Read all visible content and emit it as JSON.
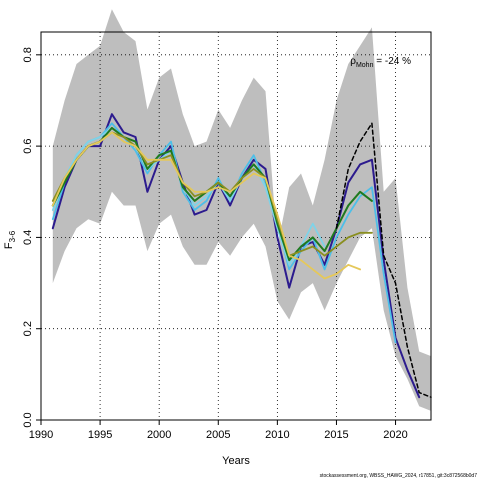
{
  "chart_data": {
    "type": "line",
    "xlabel": "Years",
    "ylabel": "F",
    "ylabel_sub": "3-6",
    "xlim": [
      1990,
      2023
    ],
    "ylim": [
      0,
      0.85
    ],
    "x_ticks": [
      1990,
      1995,
      2000,
      2005,
      2010,
      2015,
      2020
    ],
    "y_ticks": [
      0.0,
      0.2,
      0.4,
      0.6,
      0.8
    ],
    "y_tick_labels": [
      "0.0",
      "0.2",
      "0.4",
      "0.6",
      "0.8"
    ],
    "grid": true,
    "annotation": {
      "rho": "ρ",
      "rho_sub": "Mohn",
      "text": " = -24 %"
    },
    "footer": "stockassessment.org, WBSS_HAWG_2024, r17851, git:3c872568b0d7",
    "band": {
      "color": "#bebebe",
      "x": [
        1991,
        1992,
        1993,
        1994,
        1995,
        1996,
        1997,
        1998,
        1999,
        2000,
        2001,
        2002,
        2003,
        2004,
        2005,
        2006,
        2007,
        2008,
        2009,
        2010,
        2011,
        2012,
        2013,
        2014,
        2015,
        2016,
        2017,
        2018,
        2019,
        2020,
        2021,
        2022,
        2023
      ],
      "upper": [
        0.6,
        0.7,
        0.78,
        0.8,
        0.82,
        0.9,
        0.85,
        0.83,
        0.68,
        0.75,
        0.77,
        0.67,
        0.6,
        0.61,
        0.68,
        0.64,
        0.7,
        0.75,
        0.72,
        0.38,
        0.51,
        0.54,
        0.47,
        0.57,
        0.7,
        0.78,
        0.82,
        0.86,
        0.5,
        0.53,
        0.29,
        0.15,
        0.14
      ],
      "lower": [
        0.3,
        0.37,
        0.42,
        0.44,
        0.43,
        0.5,
        0.47,
        0.47,
        0.37,
        0.43,
        0.45,
        0.38,
        0.34,
        0.34,
        0.39,
        0.36,
        0.4,
        0.43,
        0.38,
        0.26,
        0.22,
        0.28,
        0.3,
        0.24,
        0.3,
        0.35,
        0.4,
        0.42,
        0.24,
        0.14,
        0.09,
        0.03,
        0.02
      ]
    },
    "series": [
      {
        "color": "#2c1b8e",
        "width": 2.0,
        "dash": "",
        "x": [
          1991,
          1992,
          1993,
          1994,
          1995,
          1996,
          1997,
          1998,
          1999,
          2000,
          2001,
          2002,
          2003,
          2004,
          2005,
          2006,
          2007,
          2008,
          2009,
          2010,
          2011,
          2012,
          2013,
          2014,
          2015,
          2016,
          2017,
          2018,
          2019,
          2020,
          2021,
          2022
        ],
        "values": [
          0.42,
          0.51,
          0.57,
          0.6,
          0.6,
          0.67,
          0.63,
          0.62,
          0.5,
          0.57,
          0.6,
          0.52,
          0.45,
          0.46,
          0.52,
          0.47,
          0.53,
          0.57,
          0.55,
          0.4,
          0.29,
          0.38,
          0.39,
          0.34,
          0.42,
          0.52,
          0.56,
          0.57,
          0.35,
          0.18,
          0.11,
          0.05
        ]
      },
      {
        "color": "#4dbfe8",
        "width": 1.8,
        "dash": "",
        "x": [
          1991,
          1992,
          1993,
          1994,
          1995,
          1996,
          1997,
          1998,
          1999,
          2000,
          2001,
          2002,
          2003,
          2004,
          2005,
          2006,
          2007,
          2008,
          2009,
          2010,
          2011,
          2012,
          2013,
          2014,
          2015,
          2016,
          2017,
          2018,
          2019,
          2020
        ],
        "values": [
          0.44,
          0.52,
          0.58,
          0.61,
          0.62,
          0.65,
          0.62,
          0.59,
          0.54,
          0.58,
          0.61,
          0.5,
          0.46,
          0.48,
          0.53,
          0.48,
          0.54,
          0.58,
          0.52,
          0.43,
          0.33,
          0.37,
          0.4,
          0.33,
          0.4,
          0.45,
          0.49,
          0.51,
          0.32,
          0.17
        ]
      },
      {
        "color": "#7fd3e8",
        "width": 1.8,
        "dash": "",
        "x": [
          1991,
          1992,
          1993,
          1994,
          1995,
          1996,
          1997,
          1998,
          1999,
          2000,
          2001,
          2002,
          2003,
          2004,
          2005,
          2006,
          2007,
          2008,
          2009,
          2010,
          2011,
          2012,
          2013,
          2014
        ],
        "values": [
          0.46,
          0.53,
          0.58,
          0.61,
          0.62,
          0.64,
          0.62,
          0.6,
          0.55,
          0.57,
          0.59,
          0.51,
          0.47,
          0.49,
          0.52,
          0.48,
          0.53,
          0.56,
          0.51,
          0.42,
          0.34,
          0.38,
          0.43,
          0.38
        ]
      },
      {
        "color": "#1f7a1f",
        "width": 2.0,
        "dash": "",
        "x": [
          1991,
          1992,
          1993,
          1994,
          1995,
          1996,
          1997,
          1998,
          1999,
          2000,
          2001,
          2002,
          2003,
          2004,
          2005,
          2006,
          2007,
          2008,
          2009,
          2010,
          2011,
          2012,
          2013,
          2014,
          2015,
          2016,
          2017,
          2018
        ],
        "values": [
          0.47,
          0.52,
          0.57,
          0.6,
          0.61,
          0.64,
          0.62,
          0.61,
          0.55,
          0.58,
          0.59,
          0.51,
          0.48,
          0.5,
          0.52,
          0.49,
          0.53,
          0.56,
          0.53,
          0.43,
          0.35,
          0.38,
          0.4,
          0.37,
          0.42,
          0.47,
          0.5,
          0.48
        ]
      },
      {
        "color": "#8a8f20",
        "width": 1.8,
        "dash": "",
        "x": [
          1991,
          1992,
          1993,
          1994,
          1995,
          1996,
          1997,
          1998,
          1999,
          2000,
          2001,
          2002,
          2003,
          2004,
          2005,
          2006,
          2007,
          2008,
          2009,
          2010,
          2011,
          2012,
          2013,
          2014,
          2015,
          2016,
          2017,
          2018
        ],
        "values": [
          0.48,
          0.53,
          0.57,
          0.6,
          0.61,
          0.63,
          0.62,
          0.6,
          0.56,
          0.57,
          0.58,
          0.52,
          0.49,
          0.5,
          0.52,
          0.5,
          0.53,
          0.55,
          0.53,
          0.44,
          0.36,
          0.37,
          0.38,
          0.36,
          0.38,
          0.4,
          0.41,
          0.41
        ]
      },
      {
        "color": "#e5c85a",
        "width": 1.8,
        "dash": "",
        "x": [
          1991,
          1992,
          1993,
          1994,
          1995,
          1996,
          1997,
          1998,
          1999,
          2000,
          2001,
          2002,
          2003,
          2004,
          2005,
          2006,
          2007,
          2008,
          2009,
          2010,
          2011,
          2012,
          2013,
          2014,
          2015,
          2016,
          2017
        ],
        "values": [
          0.47,
          0.53,
          0.57,
          0.6,
          0.61,
          0.63,
          0.61,
          0.6,
          0.57,
          0.57,
          0.57,
          0.52,
          0.5,
          0.5,
          0.51,
          0.5,
          0.52,
          0.54,
          0.53,
          0.45,
          0.36,
          0.35,
          0.33,
          0.31,
          0.32,
          0.34,
          0.33
        ]
      },
      {
        "color": "#000000",
        "width": 1.5,
        "dash": "4,3",
        "x": [
          2015,
          2016,
          2017,
          2018,
          2019,
          2020,
          2021,
          2022,
          2023
        ],
        "values": [
          0.42,
          0.55,
          0.61,
          0.65,
          0.36,
          0.3,
          0.16,
          0.06,
          0.05
        ]
      }
    ]
  }
}
